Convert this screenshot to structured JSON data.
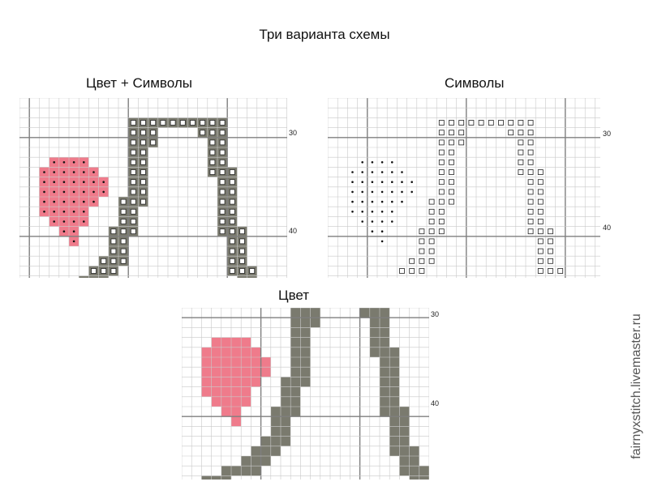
{
  "title": "Три варианта схемы",
  "watermark": "fairnyxstitch.livemaster.ru",
  "colors": {
    "fill": "#7a7a6e",
    "heart": "#ef7b8b",
    "grid": "#c9c9c9",
    "grid_major": "#7f7f7f"
  },
  "panels": [
    {
      "key": "color_symbols",
      "label": "Цвет + Символы",
      "mode": "both",
      "axis_labels": [
        {
          "text": "30",
          "row": 3
        },
        {
          "text": "40",
          "row": 13
        }
      ]
    },
    {
      "key": "symbols",
      "label": "Символы",
      "mode": "symbols",
      "axis_labels": [
        {
          "text": "30",
          "row": 3
        },
        {
          "text": "40",
          "row": 13
        }
      ]
    },
    {
      "key": "color",
      "label": "Цвет",
      "mode": "color",
      "axis_labels": [
        {
          "text": "30",
          "row": 0
        },
        {
          "text": "40",
          "row": 10
        }
      ]
    }
  ],
  "pattern_rows": [
    "....................................................",
    "...............................######...............",
    "...........##########.........########..............",
    "...........###....###..........##..##...............",
    "...........###.....##..........##..###..............",
    "...........##......##..........##...##..............",
    "...HHHH....##......##..........##...##..............",
    "..HHHHHH...##......###.........##...##..............",
    "..HHHHHHH..##.......##........###...##..............",
    "..HHHHHHH..##.......##........##....##..............",
    "..HHHHHH..###.......##........##....##..............",
    "..HHHHH...##........##.......###....##..............",
    "...HHHH...##........##.......##.....##..............",
    "....HH...###........###......##.....##..............",
    ".....H...##..........##.....###.....###.............",
    ".........##..........##.....##.......##.............",
    "........###..........##.....##.......##.............",
    ".......###...........###....##.......###............",
    "......###.............##....##........##............",
    "....####..............###...##........###...####....",
    "..###..................#######.........########.....",
    "......................................................"
  ]
}
